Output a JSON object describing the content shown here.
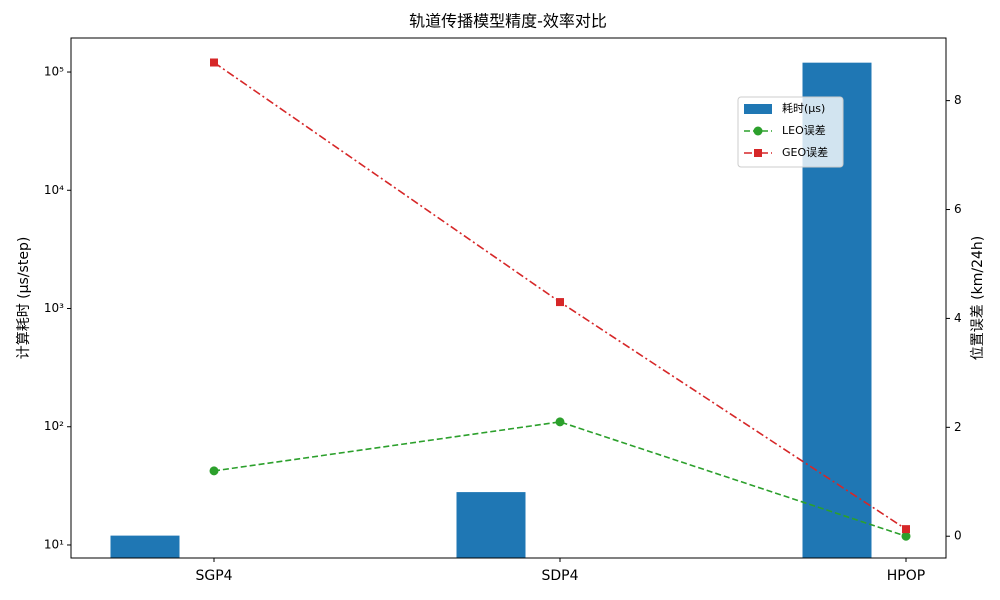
{
  "chart_data": {
    "type": "bar-line",
    "title": "轨道传播模型精度-效率对比",
    "categories": [
      "SGP4",
      "SDP4",
      "HPOP"
    ],
    "ylabel": "计算耗时 (μs/step)",
    "y2label": "位置误差 (km/24h)",
    "ylog": true,
    "ylim": [
      7.76,
      194000
    ],
    "yticks": [
      {
        "value": 10,
        "label": "10¹"
      },
      {
        "value": 100,
        "label": "10²"
      },
      {
        "value": 1000,
        "label": "10³"
      },
      {
        "value": 10000,
        "label": "10⁴"
      },
      {
        "value": 100000,
        "label": "10⁵"
      }
    ],
    "y2lim": [
      -0.4,
      9.15
    ],
    "y2ticks": [
      0,
      2,
      4,
      6,
      8
    ],
    "legend": "upper right",
    "series": [
      {
        "name": "耗时(μs)",
        "type": "bar",
        "color": "#1f77b4",
        "values": [
          12,
          28,
          120000
        ]
      },
      {
        "name": "LEO误差",
        "type": "line",
        "axis": "y2",
        "color": "#2ca02c",
        "linestyle": "dashed",
        "marker": "circle",
        "values": [
          1.2,
          2.1,
          0
        ]
      },
      {
        "name": "GEO误差",
        "type": "line",
        "axis": "y2",
        "color": "#d62728",
        "linestyle": "dashdot",
        "marker": "square",
        "values": [
          8.7,
          4.3,
          0.13
        ]
      }
    ]
  }
}
